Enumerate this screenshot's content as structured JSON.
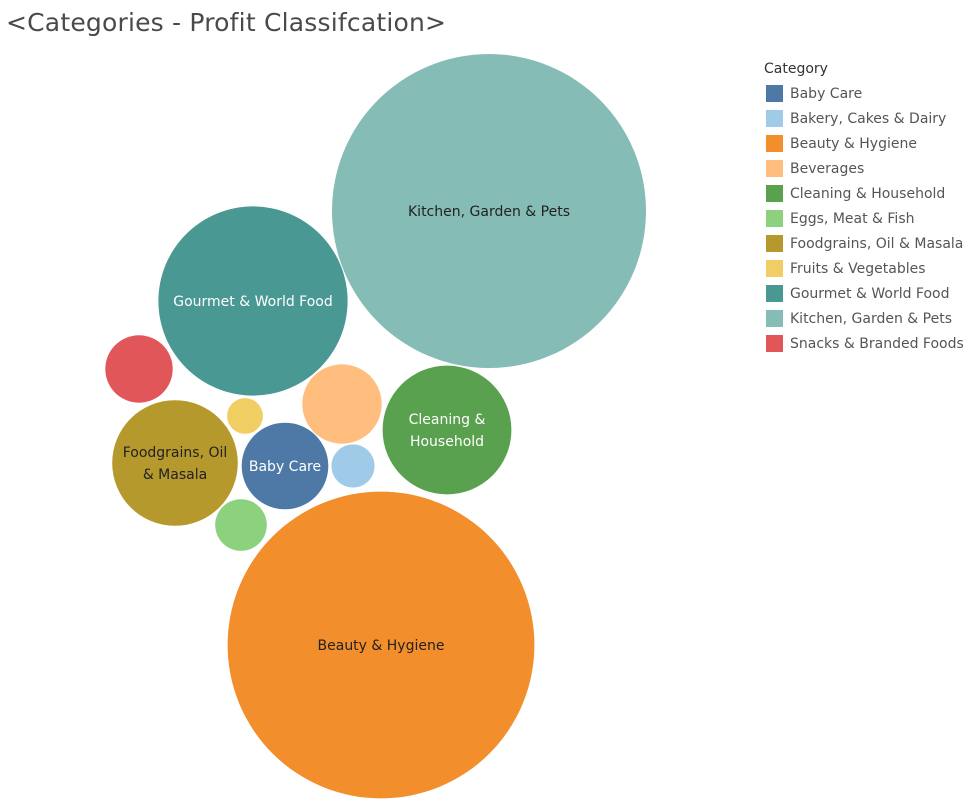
{
  "chart_data": {
    "type": "bubble",
    "title": "<Categories - Profit Classifcation>",
    "legend_title": "Category",
    "legend_position": "top-right",
    "items": [
      {
        "name": "Baby Care",
        "size": 7.6,
        "color": "#4e79a7",
        "label": [
          "Baby Care"
        ],
        "text_color": "#ffffff"
      },
      {
        "name": "Bakery, Cakes & Dairy",
        "size": 1.9,
        "color": "#a0cbe8",
        "label": [],
        "text_color": "#ffffff"
      },
      {
        "name": "Beauty & Hygiene",
        "size": 95.5,
        "color": "#f28e2b",
        "label": [
          "Beauty & Hygiene"
        ],
        "text_color": "#222222"
      },
      {
        "name": "Beverages",
        "size": 6.4,
        "color": "#ffbe7d",
        "label": [],
        "text_color": "#222222"
      },
      {
        "name": "Cleaning & Household",
        "size": 16.8,
        "color": "#59a14f",
        "label": [
          "Cleaning &",
          "Household"
        ],
        "text_color": "#ffffff"
      },
      {
        "name": "Eggs, Meat & Fish",
        "size": 2.7,
        "color": "#8cd17d",
        "label": [],
        "text_color": "#222222"
      },
      {
        "name": "Foodgrains, Oil & Masala",
        "size": 16.0,
        "color": "#b6992d",
        "label": [
          "Foodgrains, Oil",
          "& Masala"
        ],
        "text_color": "#222222"
      },
      {
        "name": "Fruits & Vegetables",
        "size": 1.3,
        "color": "#f1ce63",
        "label": [],
        "text_color": "#222222"
      },
      {
        "name": "Gourmet & World Food",
        "size": 36.3,
        "color": "#499894",
        "label": [
          "Gourmet & World Food"
        ],
        "text_color": "#ffffff"
      },
      {
        "name": "Kitchen, Garden & Pets",
        "size": 100,
        "color": "#86bcb6",
        "label": [
          "Kitchen, Garden & Pets"
        ],
        "text_color": "#222222"
      },
      {
        "name": "Snacks & Branded Foods",
        "size": 4.6,
        "color": "#e15759",
        "label": [],
        "text_color": "#ffffff"
      }
    ]
  }
}
